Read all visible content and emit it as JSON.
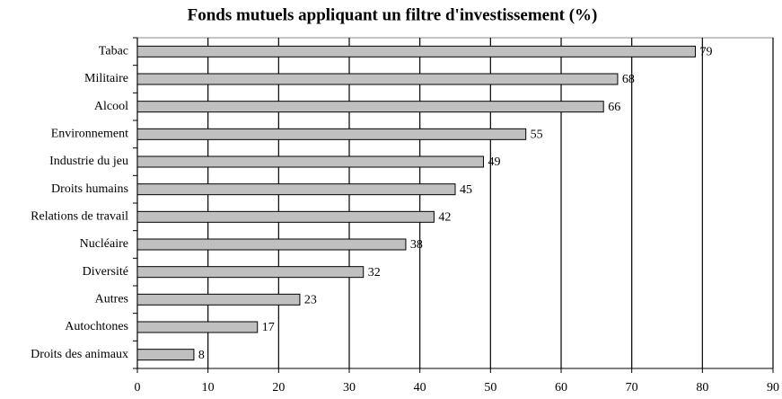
{
  "chart_data": {
    "type": "bar",
    "orientation": "horizontal",
    "title": "Fonds mutuels appliquant un filtre d'investissement (%)",
    "categories": [
      "Tabac",
      "Militaire",
      "Alcool",
      "Environnement",
      "Industrie du jeu",
      "Droits humains",
      "Relations de travail",
      "Nucléaire",
      "Diversité",
      "Autres",
      "Autochtones",
      "Droits des animaux"
    ],
    "values": [
      79,
      68,
      66,
      55,
      49,
      45,
      42,
      38,
      32,
      23,
      17,
      8
    ],
    "color": "#c0c0c0",
    "xlim": [
      0,
      90
    ],
    "xticks": [
      0,
      10,
      20,
      30,
      40,
      50,
      60,
      70,
      80,
      90
    ],
    "grid": true
  }
}
